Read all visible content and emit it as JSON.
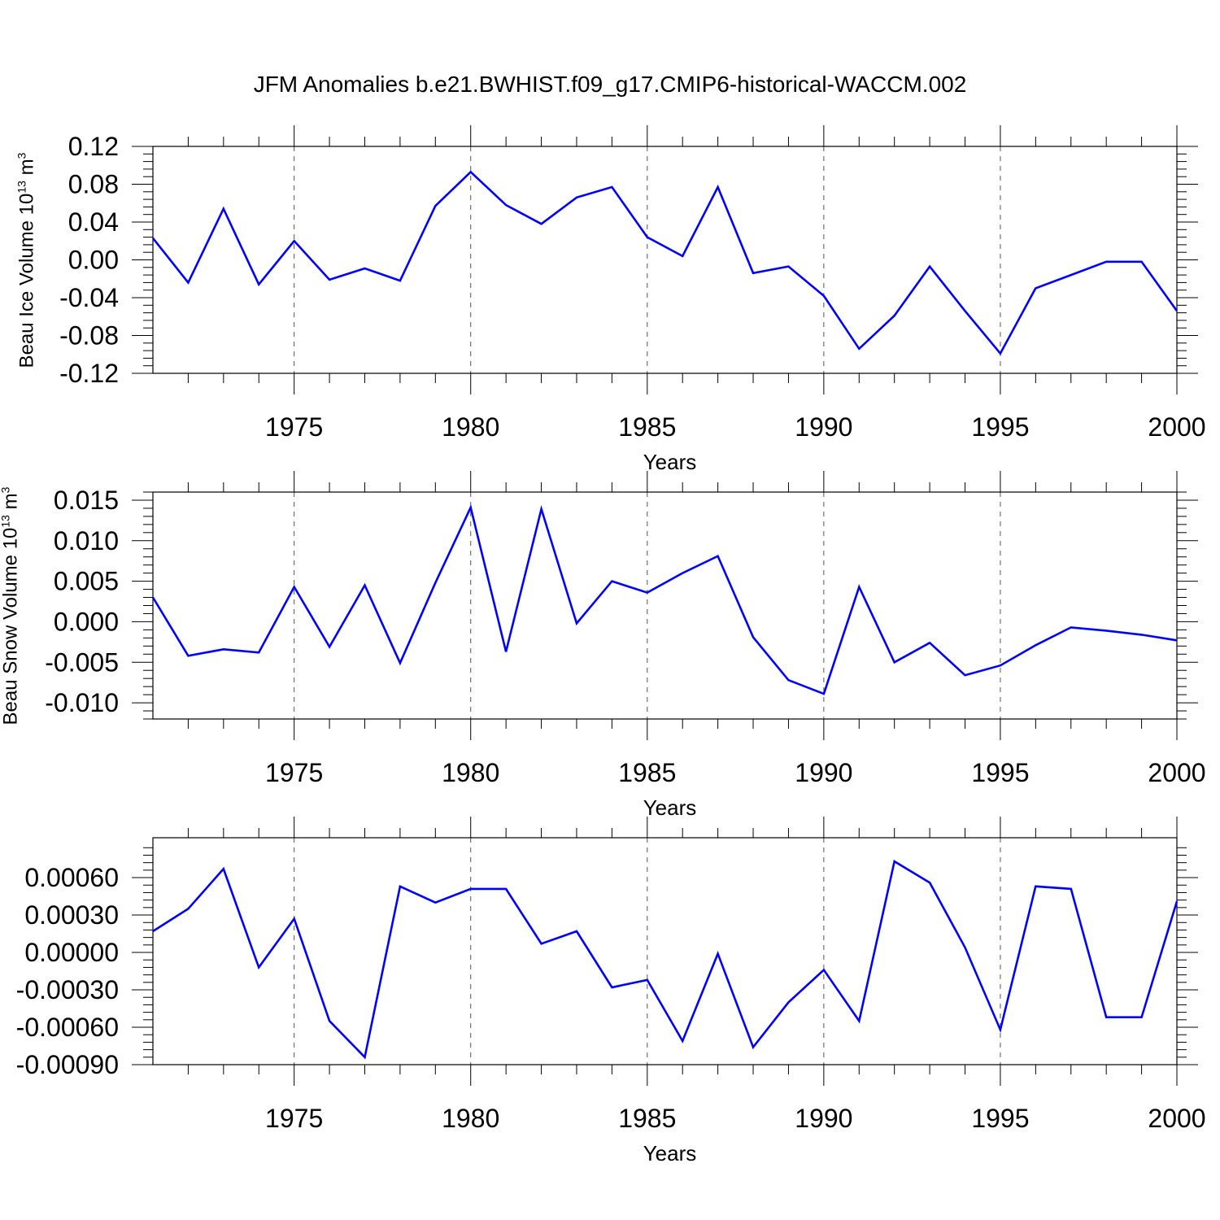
{
  "title": "JFM Anomalies b.e21.BWHIST.f09_g17.CMIP6-historical-WACCM.002",
  "colors": {
    "line": "#0000ff",
    "axis": "#000000",
    "grid": "#555555"
  },
  "chart_data": [
    {
      "type": "line",
      "ylabel": "Beau Ice Volume 10",
      "ylabel_exp": "13",
      "ylabel_unit": " m",
      "ylabel_unit_exp": "3",
      "xlabel": "Years",
      "xlim": [
        1971,
        2000
      ],
      "ylim": [
        -0.12,
        0.12
      ],
      "xticks": [
        1975,
        1980,
        1985,
        1990,
        1995,
        2000
      ],
      "xtick_labels": [
        "1975",
        "1980",
        "1985",
        "1990",
        "1995",
        "2000"
      ],
      "yticks": [
        -0.12,
        -0.08,
        -0.04,
        0.0,
        0.04,
        0.08,
        0.12
      ],
      "ytick_labels": [
        "-0.12",
        "-0.08",
        "-0.04",
        "0.00",
        "0.04",
        "0.08",
        "0.12"
      ],
      "x": [
        1971,
        1972,
        1973,
        1974,
        1975,
        1976,
        1977,
        1978,
        1979,
        1980,
        1981,
        1982,
        1983,
        1984,
        1985,
        1986,
        1987,
        1988,
        1989,
        1990,
        1991,
        1992,
        1993,
        1994,
        1995,
        1996,
        1997,
        1998,
        1999,
        2000
      ],
      "y": [
        0.023,
        -0.024,
        0.054,
        -0.026,
        0.02,
        -0.021,
        -0.009,
        -0.022,
        0.057,
        0.093,
        0.058,
        0.038,
        0.066,
        0.077,
        0.024,
        0.004,
        0.077,
        -0.014,
        -0.007,
        -0.038,
        -0.094,
        -0.059,
        -0.007,
        -0.054,
        -0.099,
        -0.03,
        -0.016,
        -0.002,
        -0.002,
        -0.054
      ]
    },
    {
      "type": "line",
      "ylabel": "Beau Snow Volume 10",
      "ylabel_exp": "13",
      "ylabel_unit": " m",
      "ylabel_unit_exp": "3",
      "xlabel": "Years",
      "xlim": [
        1971,
        2000
      ],
      "ylim": [
        -0.012,
        0.016
      ],
      "xticks": [
        1975,
        1980,
        1985,
        1990,
        1995,
        2000
      ],
      "xtick_labels": [
        "1975",
        "1980",
        "1985",
        "1990",
        "1995",
        "2000"
      ],
      "yticks": [
        -0.01,
        -0.005,
        0.0,
        0.005,
        0.01,
        0.015
      ],
      "ytick_labels": [
        "-0.010",
        "-0.005",
        "0.000",
        "0.005",
        "0.010",
        "0.015"
      ],
      "x": [
        1971,
        1972,
        1973,
        1974,
        1975,
        1976,
        1977,
        1978,
        1979,
        1980,
        1981,
        1982,
        1983,
        1984,
        1985,
        1986,
        1987,
        1988,
        1989,
        1990,
        1991,
        1992,
        1993,
        1994,
        1995,
        1996,
        1997,
        1998,
        1999,
        2000
      ],
      "y": [
        0.003,
        -0.0042,
        -0.0034,
        -0.0038,
        0.0043,
        -0.0031,
        0.0045,
        -0.0051,
        0.0048,
        0.0141,
        -0.0037,
        0.0139,
        -0.0002,
        0.005,
        0.0036,
        0.006,
        0.0081,
        -0.0019,
        -0.0072,
        -0.0089,
        0.0043,
        -0.005,
        -0.0026,
        -0.0066,
        -0.0054,
        -0.0029,
        -0.0007,
        -0.0011,
        -0.0016,
        -0.0023
      ]
    },
    {
      "type": "line",
      "ylabel": "",
      "xlabel": "Years",
      "xlim": [
        1971,
        2000
      ],
      "ylim": [
        -0.0009,
        0.00092
      ],
      "xticks": [
        1975,
        1980,
        1985,
        1990,
        1995,
        2000
      ],
      "xtick_labels": [
        "1975",
        "1980",
        "1985",
        "1990",
        "1995",
        "2000"
      ],
      "yticks": [
        -0.0009,
        -0.0006,
        -0.0003,
        0.0,
        0.0003,
        0.0006
      ],
      "ytick_labels": [
        "-0.00090",
        "-0.00060",
        "-0.00030",
        "0.00000",
        "0.00030",
        "0.00060"
      ],
      "x": [
        1971,
        1972,
        1973,
        1974,
        1975,
        1976,
        1977,
        1978,
        1979,
        1980,
        1981,
        1982,
        1983,
        1984,
        1985,
        1986,
        1987,
        1988,
        1989,
        1990,
        1991,
        1992,
        1993,
        1994,
        1995,
        1996,
        1997,
        1998,
        1999,
        2000
      ],
      "y": [
        0.00017,
        0.00035,
        0.00067,
        -0.00012,
        0.00027,
        -0.00055,
        -0.00084,
        0.00053,
        0.0004,
        0.00051,
        0.00051,
        7e-05,
        0.00017,
        -0.00028,
        -0.00022,
        -0.00071,
        -1e-05,
        -0.00076,
        -0.0004,
        -0.00014,
        -0.00055,
        0.00073,
        0.00056,
        4e-05,
        -0.00062,
        0.00053,
        0.00051,
        -0.00052,
        -0.00052,
        0.00041
      ]
    }
  ]
}
